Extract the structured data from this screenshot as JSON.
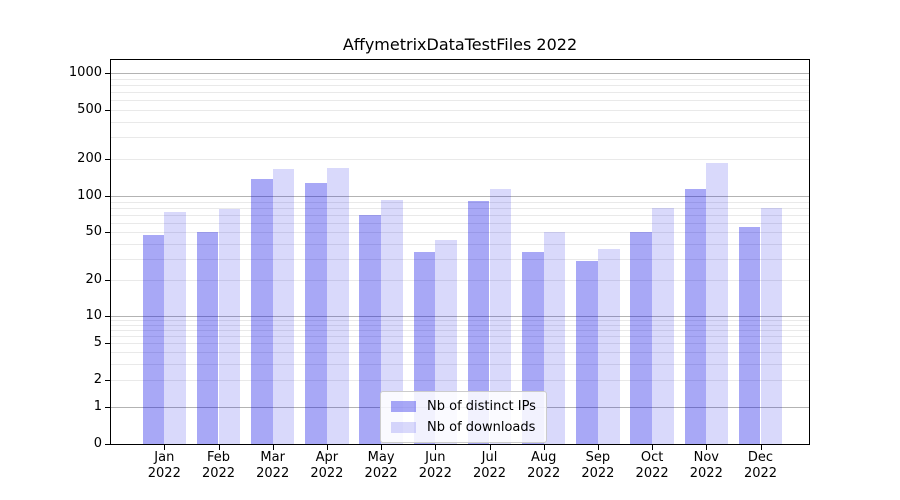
{
  "chart_data": {
    "type": "bar",
    "title": "AffymetrixDataTestFiles 2022",
    "categories": [
      "Jan",
      "Feb",
      "Mar",
      "Apr",
      "May",
      "Jun",
      "Jul",
      "Aug",
      "Sep",
      "Oct",
      "Nov",
      "Dec"
    ],
    "category_year": "2022",
    "series": [
      {
        "name": "Nb of distinct IPs",
        "color": "rgba(0,0,230,0.34)",
        "values": [
          47,
          50,
          137,
          127,
          70,
          34,
          91,
          34,
          29,
          50,
          114,
          55
        ]
      },
      {
        "name": "Nb of downloads",
        "color": "rgba(0,0,230,0.15)",
        "values": [
          74,
          78,
          165,
          170,
          92,
          43,
          115,
          50,
          36,
          80,
          185,
          80
        ]
      }
    ],
    "yscale": "symlog",
    "ylim": [
      0,
      1300
    ],
    "y_ticks": [
      0,
      1,
      2,
      5,
      10,
      20,
      50,
      100,
      200,
      500,
      1000
    ],
    "major_grid_values": [
      1,
      10,
      100,
      1000
    ],
    "grid": true,
    "legend_position": "lower center",
    "colors": {
      "bar_distinct_ips": "rgba(0,0,230,0.34)",
      "bar_downloads": "rgba(0,0,230,0.15)",
      "major_grid": "#b3b3b3",
      "minor_grid": "#e9e9e9",
      "axis": "#000000",
      "legend_border": "#cccccc",
      "background": "#ffffff"
    }
  }
}
